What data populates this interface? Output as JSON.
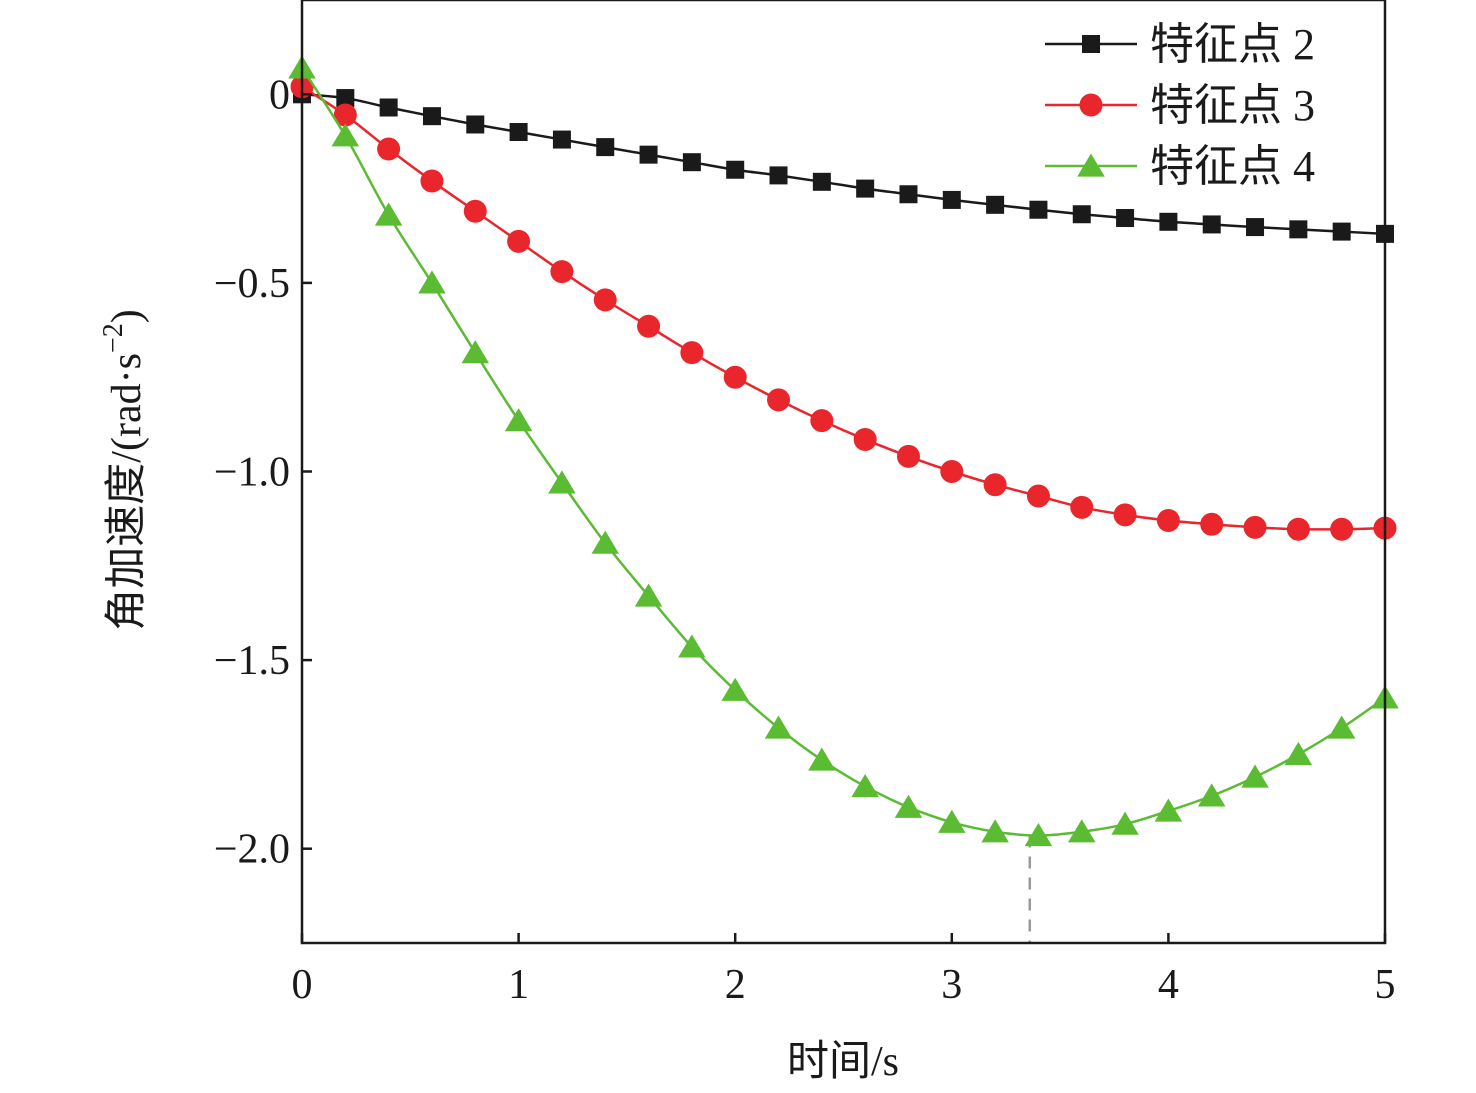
{
  "chart_data": {
    "type": "line",
    "title": "",
    "xlabel": "时间/s",
    "ylabel": "角加速度/(rad·s",
    "ylabel_sup": "−2",
    "ylabel_close": ")",
    "xlim": [
      0,
      5
    ],
    "ylim": [
      -2.25,
      0.25
    ],
    "x_ticks": [
      0,
      1,
      2,
      3,
      4,
      5
    ],
    "x_tick_labels": [
      "0",
      "1",
      "2",
      "3",
      "4",
      "5"
    ],
    "y_ticks": [
      0,
      -0.5,
      -1.0,
      -1.5,
      -2.0
    ],
    "y_tick_labels": [
      "0",
      "−0.5",
      "−1.0",
      "−1.5",
      "−2.0"
    ],
    "grid": false,
    "legend_position": "top-right",
    "x": [
      0,
      0.2,
      0.4,
      0.6,
      0.8,
      1.0,
      1.2,
      1.4,
      1.6,
      1.8,
      2.0,
      2.2,
      2.4,
      2.6,
      2.8,
      3.0,
      3.2,
      3.4,
      3.6,
      3.8,
      4.0,
      4.2,
      4.4,
      4.6,
      4.8,
      5.0
    ],
    "series": [
      {
        "name": "特征点 2",
        "color": "#1a1a1a",
        "marker": "square",
        "values": [
          0.0,
          -0.01,
          -0.035,
          -0.058,
          -0.08,
          -0.1,
          -0.12,
          -0.14,
          -0.16,
          -0.18,
          -0.2,
          -0.215,
          -0.232,
          -0.25,
          -0.265,
          -0.28,
          -0.293,
          -0.306,
          -0.318,
          -0.328,
          -0.338,
          -0.345,
          -0.352,
          -0.358,
          -0.364,
          -0.37
        ]
      },
      {
        "name": "特征点 3",
        "color": "#e8262b",
        "marker": "circle",
        "values": [
          0.02,
          -0.055,
          -0.145,
          -0.23,
          -0.31,
          -0.39,
          -0.47,
          -0.545,
          -0.615,
          -0.685,
          -0.75,
          -0.81,
          -0.865,
          -0.915,
          -0.96,
          -1.0,
          -1.035,
          -1.065,
          -1.095,
          -1.115,
          -1.13,
          -1.14,
          -1.148,
          -1.153,
          -1.153,
          -1.15
        ]
      },
      {
        "name": "特征点 4",
        "color": "#5bbb33",
        "marker": "triangle",
        "values": [
          0.07,
          -0.11,
          -0.32,
          -0.5,
          -0.685,
          -0.865,
          -1.03,
          -1.19,
          -1.33,
          -1.465,
          -1.58,
          -1.68,
          -1.765,
          -1.835,
          -1.89,
          -1.93,
          -1.955,
          -1.965,
          -1.955,
          -1.935,
          -1.9,
          -1.86,
          -1.81,
          -1.75,
          -1.68,
          -1.6
        ]
      }
    ],
    "annotation": {
      "type": "dashed-vertical-marker",
      "x": 3.36,
      "y_from": -1.965,
      "color": "#999999"
    }
  }
}
